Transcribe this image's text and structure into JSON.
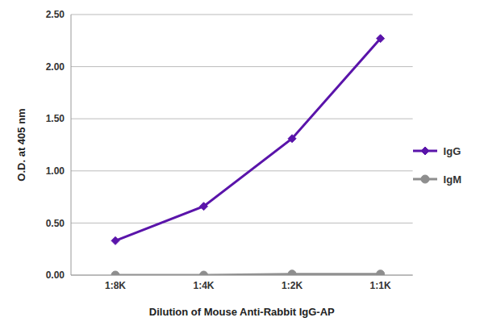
{
  "chart_data": {
    "type": "line",
    "x_label": "Dilution of Mouse Anti-Rabbit IgG-AP",
    "y_label": "O.D. at 405 nm",
    "categories": [
      "1:8K",
      "1:4K",
      "1:2K",
      "1:1K"
    ],
    "series": [
      {
        "name": "IgG",
        "color": "#5a14aa",
        "marker": "diamond",
        "values": [
          0.33,
          0.66,
          1.31,
          2.27
        ]
      },
      {
        "name": "IgM",
        "color": "#8e8e8e",
        "marker": "circle",
        "values": [
          0.0,
          0.0,
          0.01,
          0.01
        ]
      }
    ],
    "ylim": [
      0,
      2.5
    ],
    "yticks": [
      {
        "value": 0,
        "label": "0.00"
      },
      {
        "value": 0.5,
        "label": "0.50"
      },
      {
        "value": 1,
        "label": "1.00"
      },
      {
        "value": 1.5,
        "label": "1.50"
      },
      {
        "value": 2,
        "label": "2.00"
      },
      {
        "value": 2.5,
        "label": "2.50"
      }
    ],
    "grid": true,
    "legend": "right"
  }
}
